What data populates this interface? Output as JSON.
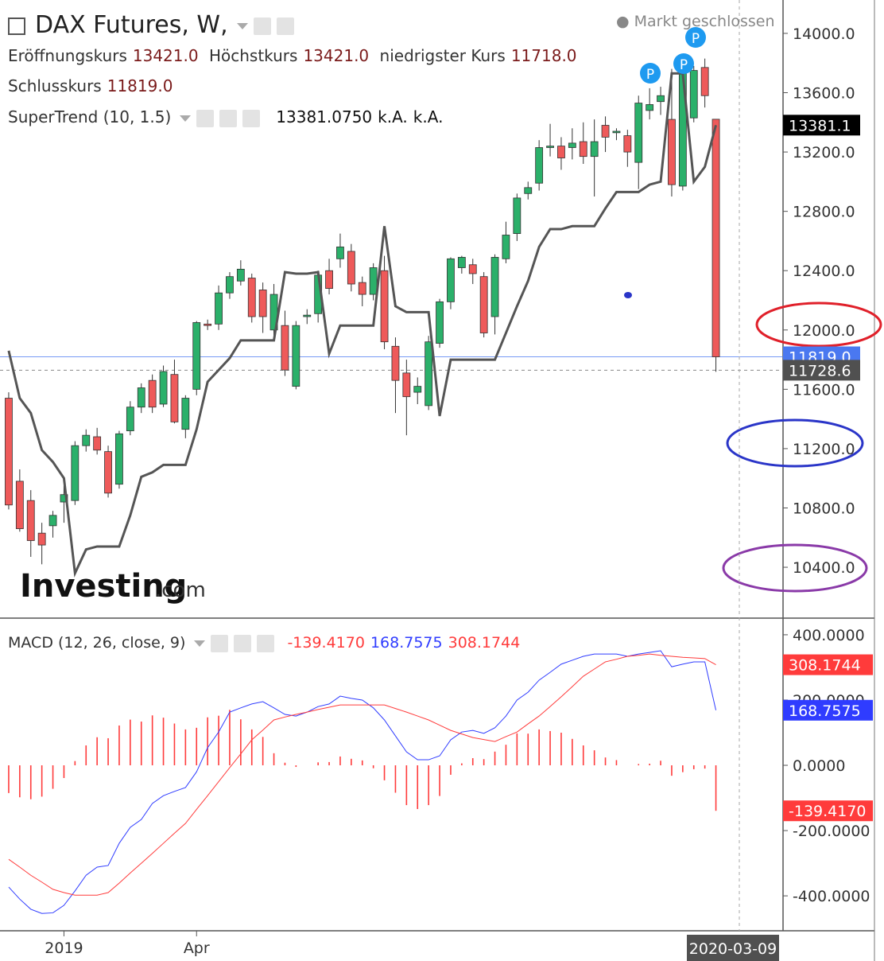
{
  "header": {
    "title": "DAX Futures, W,",
    "status": "Markt geschlossen"
  },
  "logo": {
    "brand": "Investing",
    "suffix": ".com"
  },
  "chart_data": [
    {
      "type": "candlestick",
      "ohlc_names": [
        "Eröffnungskurs",
        "Höchstkurs",
        "niedrigster Kurs",
        "Schlusskurs"
      ],
      "ohlc_labels": [
        "13421.0",
        "13421.0",
        "11718.0",
        "11819.0"
      ],
      "event_label": "P",
      "categories": [
        null,
        null,
        null,
        null,
        null,
        "2019",
        null,
        null,
        null,
        null,
        null,
        null,
        null,
        null,
        null,
        null,
        null,
        "Apr",
        null,
        null,
        null,
        null,
        null,
        null,
        null,
        null,
        null,
        null,
        null,
        null,
        null,
        null,
        null,
        null,
        null,
        null,
        null,
        null,
        null,
        null,
        null,
        null,
        null,
        null,
        null,
        null,
        null,
        null,
        null,
        null,
        null,
        null,
        null,
        null,
        null,
        null,
        null,
        null,
        null,
        null,
        null,
        null,
        null,
        null,
        null
      ],
      "open": [
        11540,
        10980,
        10850,
        10630,
        10680,
        10840,
        10850,
        11220,
        11280,
        11180,
        10960,
        11320,
        11480,
        11660,
        11500,
        11700,
        11330,
        11600,
        12040,
        12040,
        12250,
        12330,
        12350,
        12270,
        12000,
        12030,
        11620,
        12090,
        12110,
        12400,
        12480,
        12530,
        12320,
        12240,
        12400,
        11890,
        11710,
        11580,
        11490,
        11910,
        12190,
        12420,
        12440,
        12360,
        12090,
        12480,
        12650,
        12920,
        12990,
        13230,
        13240,
        13230,
        13270,
        13170,
        13380,
        13330,
        13310,
        13130,
        13480,
        13540,
        13420,
        12970,
        13430,
        13770,
        13421
      ],
      "high": [
        11580,
        11060,
        10920,
        10700,
        10780,
        10950,
        11250,
        11330,
        11340,
        11220,
        11320,
        11520,
        11640,
        11700,
        11760,
        11800,
        11560,
        12060,
        12070,
        12300,
        12390,
        12470,
        12380,
        12320,
        12310,
        12130,
        12060,
        12140,
        12400,
        12480,
        12650,
        12580,
        12360,
        12450,
        12500,
        11950,
        11800,
        11680,
        11960,
        12210,
        12490,
        12500,
        12480,
        12390,
        12510,
        12730,
        12920,
        13000,
        13280,
        13390,
        13300,
        13360,
        13400,
        13420,
        13440,
        13360,
        13350,
        13580,
        13630,
        13640,
        13760,
        13770,
        13780,
        13830,
        13421
      ],
      "low": [
        10790,
        10640,
        10470,
        10420,
        10600,
        10700,
        10820,
        11180,
        11160,
        10870,
        10930,
        11290,
        11440,
        11440,
        11480,
        11370,
        11270,
        11560,
        12000,
        12000,
        12210,
        12300,
        12050,
        11980,
        11950,
        11690,
        11600,
        12040,
        12050,
        12240,
        12420,
        12260,
        12160,
        12200,
        11870,
        11440,
        11290,
        11500,
        11460,
        11880,
        12140,
        12380,
        12310,
        11950,
        11970,
        12450,
        12600,
        12880,
        12940,
        13170,
        13080,
        13150,
        13120,
        12900,
        13200,
        13280,
        13100,
        12950,
        13420,
        13450,
        12900,
        12940,
        13400,
        13500,
        11718
      ],
      "close": [
        10820,
        10660,
        10580,
        10550,
        10750,
        10890,
        11220,
        11290,
        11190,
        10900,
        11300,
        11480,
        11610,
        11480,
        11720,
        11380,
        11540,
        12050,
        12030,
        12250,
        12360,
        12410,
        12090,
        12090,
        12240,
        11730,
        12030,
        12100,
        12370,
        12280,
        12560,
        12310,
        12240,
        12420,
        11920,
        11660,
        11550,
        11620,
        11920,
        12190,
        12480,
        12490,
        12380,
        11980,
        12490,
        12640,
        12890,
        12960,
        13230,
        13240,
        13160,
        13260,
        13170,
        13270,
        13300,
        13340,
        13200,
        13530,
        13520,
        13580,
        12980,
        13730,
        13750,
        13580,
        11819
      ],
      "up_color": "#2bb06a",
      "down_color": "#ee5a5a",
      "close_color": "#4a78f0",
      "supertrend": {
        "name": "SuperTrend (10, 1.5)",
        "color": "#555555",
        "values": [
          11860,
          11540,
          11440,
          11190,
          11110,
          11000,
          10360,
          10520,
          10540,
          10540,
          10540,
          10750,
          11010,
          11040,
          11090,
          11090,
          11090,
          11330,
          11650,
          11730,
          11810,
          11930,
          11930,
          11930,
          11930,
          12390,
          12380,
          12380,
          12390,
          11840,
          12030,
          12030,
          12030,
          12030,
          12700,
          12160,
          12120,
          12120,
          12120,
          11420,
          11800,
          11800,
          11800,
          11800,
          11800,
          11980,
          12160,
          12330,
          12560,
          12680,
          12680,
          12700,
          12700,
          12700,
          12820,
          12930,
          12930,
          12930,
          12980,
          13000,
          13730,
          13730,
          13000,
          13100,
          13381.075
        ],
        "legend_labels": [
          "13381.0750",
          "k.A.",
          "k.A."
        ],
        "axis_label": "13381.1"
      },
      "crosshair": {
        "value": 11728.6,
        "label": "11728.6",
        "date": "2020-03-09"
      },
      "ylim": [
        10057,
        14225
      ],
      "yticks": [
        {
          "value": 14000,
          "label": "14000.0"
        },
        {
          "value": 13600,
          "label": "13600.0"
        },
        {
          "value": 13200,
          "label": "13200.0"
        },
        {
          "value": 12800,
          "label": "12800.0"
        },
        {
          "value": 12400,
          "label": "12400.0"
        },
        {
          "value": 12000,
          "label": "12000.0"
        },
        {
          "value": 11600,
          "label": "11600.0"
        },
        {
          "value": 11200,
          "label": "11200.0"
        },
        {
          "value": 10800,
          "label": "10800.0"
        },
        {
          "value": 10400,
          "label": "10400.0"
        }
      ]
    },
    {
      "type": "macd",
      "title": "MACD (12, 26, close, 9)",
      "histogram": {
        "color": "#ff3b3b",
        "last_label": "-139.4170",
        "values": [
          -85,
          -98,
          -104,
          -96,
          -72,
          -39,
          13,
          61,
          86,
          83,
          122,
          140,
          134,
          153,
          146,
          128,
          110,
          115,
          147,
          152,
          170,
          141,
          110,
          87,
          37,
          8,
          -5,
          0,
          9,
          10,
          27,
          20,
          15,
          -9,
          -46,
          -84,
          -122,
          -134,
          -122,
          -94,
          -29,
          6,
          22,
          19,
          42,
          63,
          98,
          97,
          110,
          105,
          100,
          81,
          61,
          46,
          24,
          16,
          0,
          4,
          5,
          14,
          -32,
          -21,
          -12,
          -10,
          -139.417
        ]
      },
      "series": [
        {
          "color": "#2f3cff",
          "last_label": "168.7575",
          "values": [
            -373,
            -410,
            -441,
            -454,
            -452,
            -429,
            -385,
            -337,
            -312,
            -307,
            -239,
            -190,
            -166,
            -117,
            -93,
            -80,
            -68,
            -20,
            54,
            102,
            163,
            176,
            188,
            195,
            176,
            156,
            151,
            163,
            180,
            188,
            212,
            205,
            200,
            176,
            139,
            90,
            41,
            17,
            17,
            29,
            78,
            102,
            107,
            98,
            115,
            151,
            200,
            224,
            261,
            285,
            310,
            322,
            334,
            341,
            341,
            341,
            334,
            341,
            346,
            351,
            302,
            310,
            317,
            317,
            168.7575
          ]
        },
        {
          "color": "#ff3b3b",
          "last_label": "308.1744",
          "values": [
            -288,
            -312,
            -337,
            -358,
            -380,
            -390,
            -398,
            -398,
            -398,
            -390,
            -361,
            -330,
            -300,
            -270,
            -239,
            -208,
            -178,
            -135,
            -93,
            -50,
            -7,
            35,
            78,
            108,
            139,
            148,
            156,
            163,
            171,
            178,
            185,
            185,
            185,
            185,
            185,
            174,
            163,
            151,
            139,
            123,
            107,
            96,
            85,
            79,
            73,
            88,
            102,
            127,
            151,
            180,
            210,
            241,
            273,
            295,
            317,
            325,
            334,
            337,
            341,
            337,
            334,
            331,
            329,
            327,
            308.1744
          ]
        }
      ],
      "ylim": [
        -507,
        451
      ],
      "yticks": [
        {
          "value": 400,
          "label": "400.0000"
        },
        {
          "value": 200,
          "label": "200.0000"
        },
        {
          "value": 0,
          "label": "0.0000"
        },
        {
          "value": -200,
          "label": "-200.0000"
        },
        {
          "value": -400,
          "label": "-400.0000"
        }
      ]
    }
  ]
}
